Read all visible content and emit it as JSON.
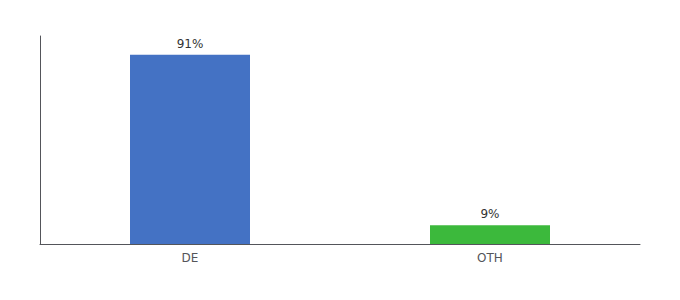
{
  "chart_data": {
    "type": "bar",
    "categories": [
      "DE",
      "OTH"
    ],
    "values": [
      91,
      9
    ],
    "value_labels": [
      "91%",
      "9%"
    ],
    "colors": [
      "#4472c4",
      "#3cb93c"
    ],
    "ylim": [
      0,
      100
    ],
    "tick_labels": "x",
    "grid": false,
    "data_labels": true
  }
}
